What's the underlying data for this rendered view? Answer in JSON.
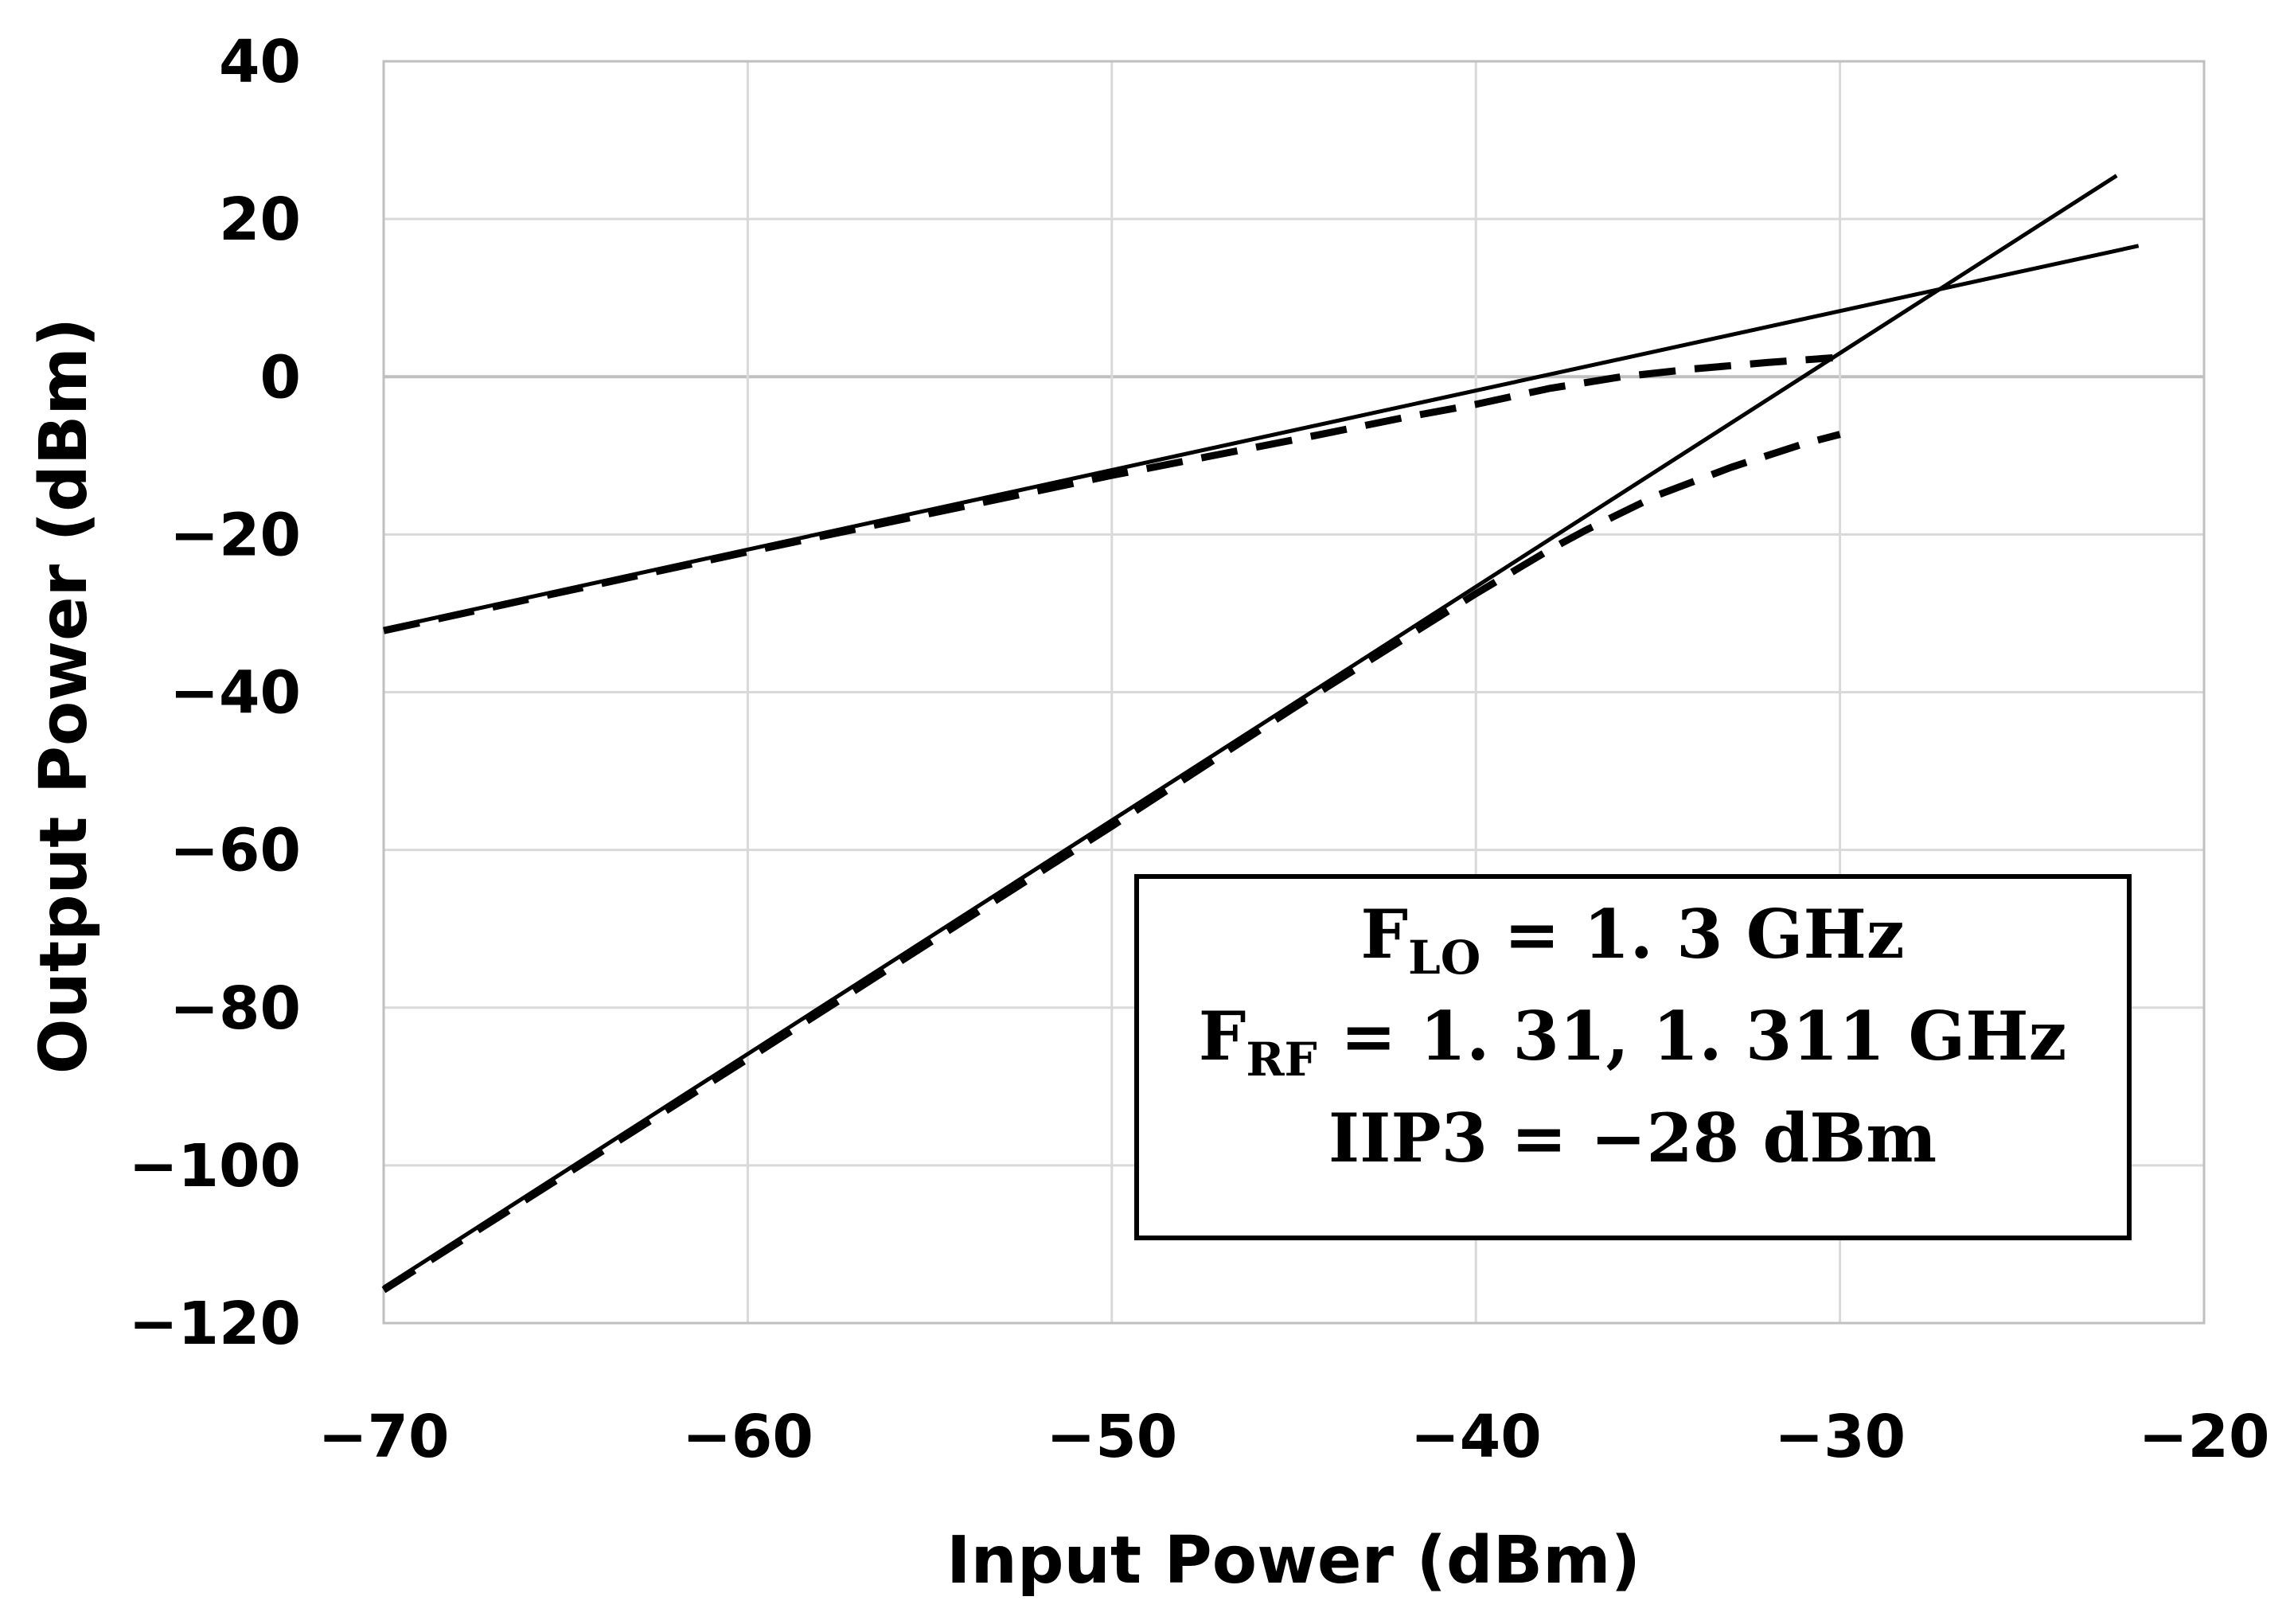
{
  "chart_data": {
    "type": "line",
    "xlabel": "Input Power (dBm)",
    "ylabel": "Output Power (dBm)",
    "xlim": [
      -70,
      -20
    ],
    "ylim": [
      -120,
      40
    ],
    "x_ticks": [
      -70,
      -60,
      -50,
      -40,
      -30,
      -20
    ],
    "y_ticks": [
      -120,
      -100,
      -80,
      -60,
      -40,
      -20,
      0,
      20,
      40
    ],
    "x_tick_labels": [
      "−70",
      "−60",
      "−50",
      "−40",
      "−30",
      "−20"
    ],
    "y_tick_labels": [
      "−120",
      "−100",
      "−80",
      "−60",
      "−40",
      "−20",
      "0",
      "20",
      "40"
    ],
    "grid": true,
    "series": [
      {
        "style": "solid",
        "x": [
          -70,
          -21.8
        ],
        "y": [
          -32,
          16.6
        ]
      },
      {
        "style": "solid",
        "x": [
          -70,
          -22.4
        ],
        "y": [
          -115.5,
          25.5
        ]
      },
      {
        "style": "dashed",
        "x": [
          -70,
          -60,
          -50,
          -45,
          -42,
          -40,
          -38,
          -36,
          -34,
          -32,
          -30.2
        ],
        "y": [
          -32.2,
          -22.2,
          -12.5,
          -8,
          -5.2,
          -3.5,
          -1.5,
          0,
          1,
          1.8,
          2.4
        ]
      },
      {
        "style": "dashed",
        "x": [
          -70,
          -60,
          -50,
          -45,
          -40,
          -38,
          -37,
          -35,
          -33,
          -31,
          -30
        ],
        "y": [
          -115.8,
          -86.5,
          -57,
          -42,
          -27.5,
          -22,
          -19.5,
          -15,
          -11.5,
          -8.5,
          -7.3
        ]
      }
    ],
    "annotation": {
      "line1": {
        "main": "F",
        "sub": "LO",
        "rest": " = 1. 3 GHz"
      },
      "line2": {
        "main": "F",
        "sub": "RF",
        "rest": " = 1. 31, 1. 311 GHz"
      },
      "line3": "IIP3 = −28 dBm"
    },
    "colors": {
      "grid": "#d9d9d9",
      "axis": "#bfbfbf",
      "line": "#000000"
    }
  }
}
